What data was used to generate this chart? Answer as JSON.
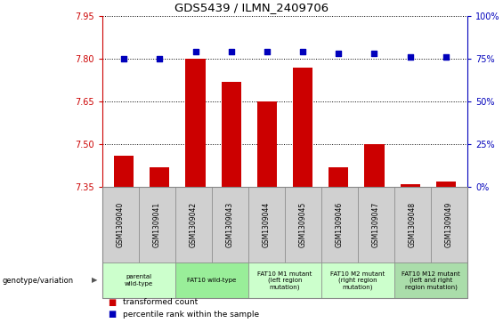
{
  "title": "GDS5439 / ILMN_2409706",
  "samples": [
    "GSM1309040",
    "GSM1309041",
    "GSM1309042",
    "GSM1309043",
    "GSM1309044",
    "GSM1309045",
    "GSM1309046",
    "GSM1309047",
    "GSM1309048",
    "GSM1309049"
  ],
  "bar_values": [
    7.46,
    7.42,
    7.8,
    7.72,
    7.65,
    7.77,
    7.42,
    7.5,
    7.36,
    7.37
  ],
  "dot_values": [
    75,
    75,
    79,
    79,
    79,
    79,
    78,
    78,
    76,
    76
  ],
  "ylim_left": [
    7.35,
    7.95
  ],
  "ylim_right": [
    0,
    100
  ],
  "yticks_left": [
    7.35,
    7.5,
    7.65,
    7.8,
    7.95
  ],
  "yticks_right": [
    0,
    25,
    50,
    75,
    100
  ],
  "bar_color": "#cc0000",
  "dot_color": "#0000bb",
  "genotype_groups": [
    {
      "label": "parental\nwild-type",
      "start": 0,
      "end": 2,
      "color": "#ccffcc"
    },
    {
      "label": "FAT10 wild-type",
      "start": 2,
      "end": 4,
      "color": "#99ee99"
    },
    {
      "label": "FAT10 M1 mutant\n(left region\nmutation)",
      "start": 4,
      "end": 6,
      "color": "#ccffcc"
    },
    {
      "label": "FAT10 M2 mutant\n(right region\nmutation)",
      "start": 6,
      "end": 8,
      "color": "#ccffcc"
    },
    {
      "label": "FAT10 M12 mutant\n(left and right\nregion mutation)",
      "start": 8,
      "end": 10,
      "color": "#aaddaa"
    }
  ],
  "sample_cell_color": "#d0d0d0",
  "legend_red_label": "transformed count",
  "legend_blue_label": "percentile rank within the sample",
  "genotype_label": "genotype/variation"
}
